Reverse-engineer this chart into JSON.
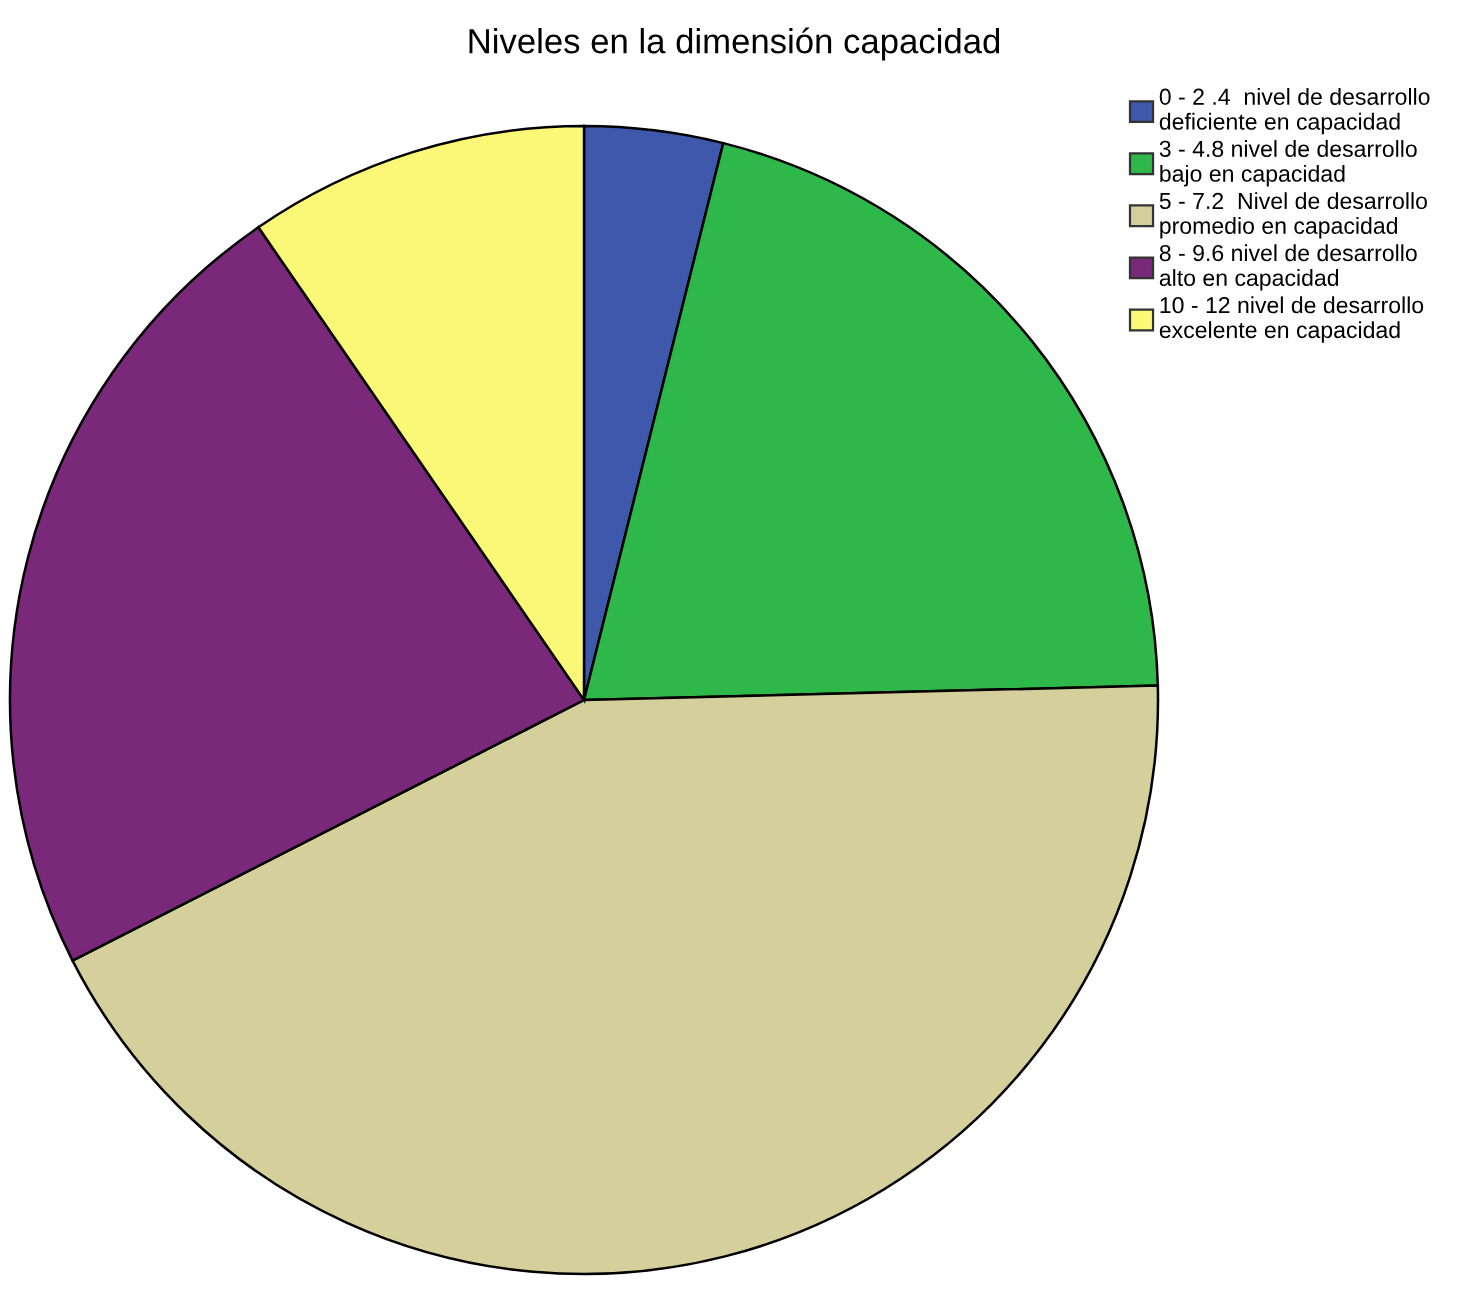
{
  "chart_data": {
    "type": "pie",
    "title": "Niveles en la dimensión capacidad",
    "categories": [
      "0 - 2 .4  nivel de desarrollo\ndeficiente en capacidad",
      "3 - 4.8 nivel de desarrollo\nbajo en capacidad",
      "5 - 7.2  Nivel de desarrollo\npromedio en capacidad",
      "8 - 9.6 nivel de desarrollo\nalto en capacidad",
      "10 - 12 nivel de desarrollo\nexcelente en capacidad"
    ],
    "values": [
      3.9,
      20.7,
      42.9,
      22.9,
      9.6
    ],
    "colors": [
      "#3e58ac",
      "#2fb84a",
      "#d5cf9b",
      "#7a297a",
      "#fbf877"
    ],
    "legend": "top right"
  }
}
